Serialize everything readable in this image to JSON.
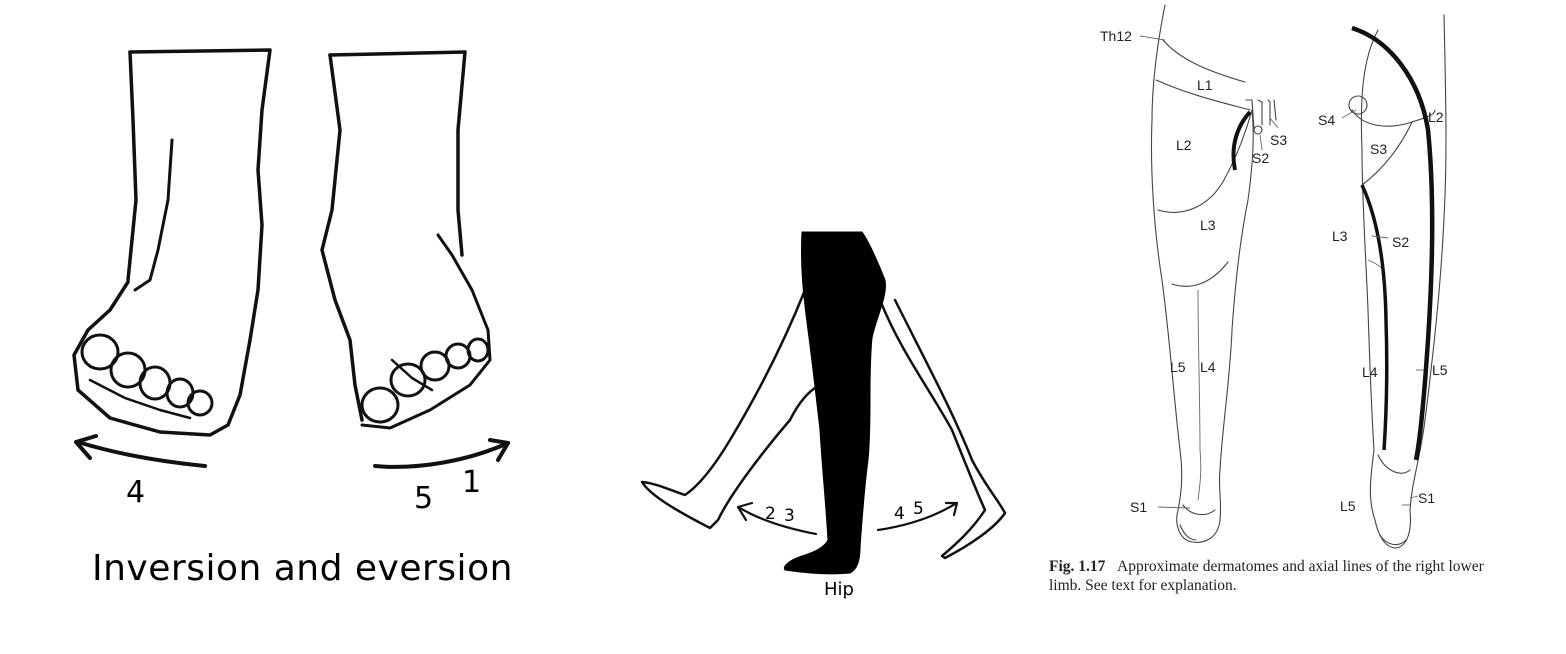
{
  "feet": {
    "caption": "Inversion and eversion",
    "left_arrow_number": "4",
    "right_arrow_numbers": [
      "5",
      "1"
    ]
  },
  "hip": {
    "label": "Hip",
    "back_arrow_numbers": [
      "2",
      "3"
    ],
    "front_arrow_numbers": [
      "4",
      "5"
    ]
  },
  "dermatomes": {
    "front_labels": [
      "Th12",
      "L1",
      "L2",
      "L3",
      "L5",
      "L4",
      "S1",
      "S3",
      "S2"
    ],
    "back_labels": [
      "S4",
      "L2",
      "S3",
      "L3",
      "S2",
      "L4",
      "L5",
      "L5",
      "S1"
    ],
    "caption_fig": "Fig. 1.17",
    "caption_text": "Approximate dermatomes and axial lines of the right lower limb. See text for explanation."
  }
}
